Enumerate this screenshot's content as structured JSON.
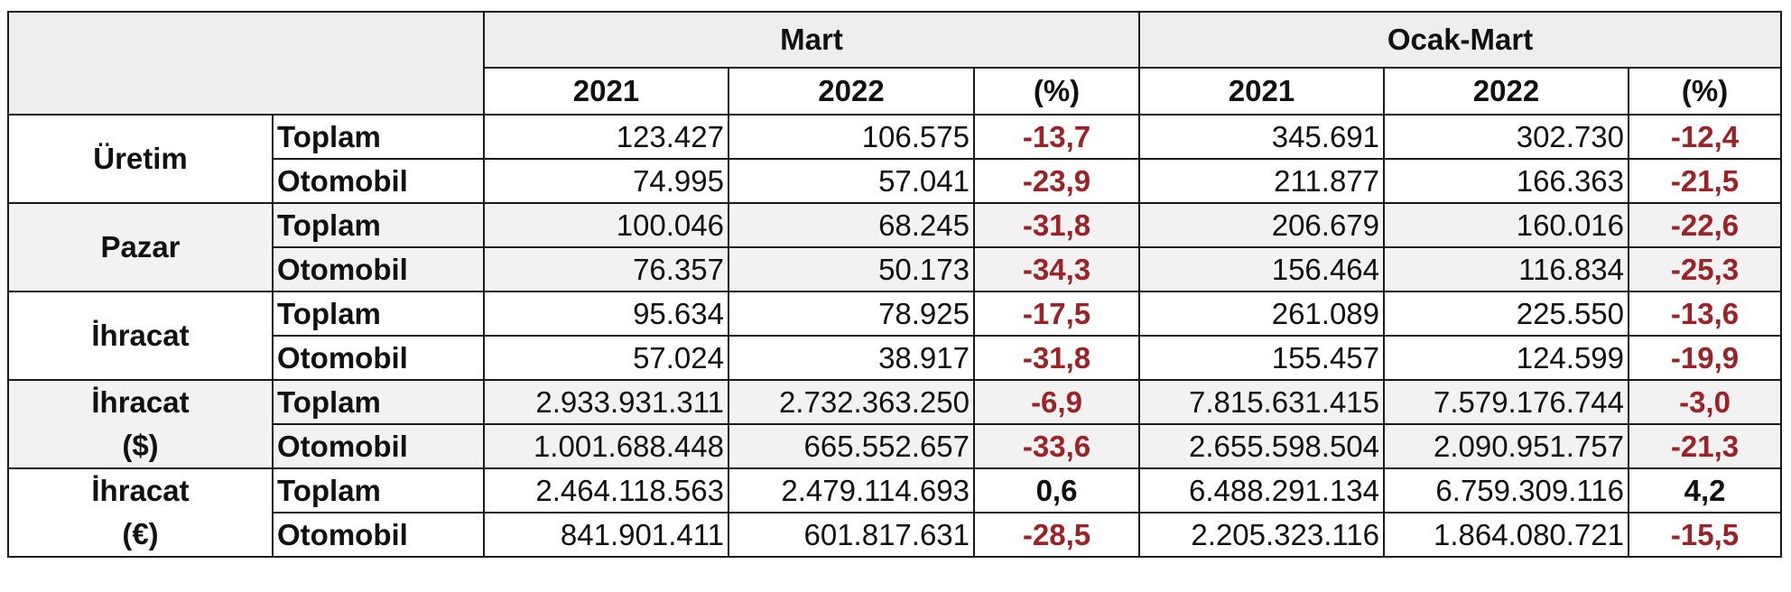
{
  "chart_data": {
    "type": "table",
    "header": {
      "periods": [
        "Mart",
        "Ocak-Mart"
      ],
      "subcolumns": [
        "2021",
        "2022",
        "(%)"
      ]
    },
    "groups": [
      {
        "label_lines": [
          "Üretim"
        ],
        "rows": [
          {
            "label": "Toplam",
            "values": [
              "123.427",
              "106.575",
              "-13,7",
              "345.691",
              "302.730",
              "-12,4"
            ]
          },
          {
            "label": "Otomobil",
            "values": [
              "74.995",
              "57.041",
              "-23,9",
              "211.877",
              "166.363",
              "-21,5"
            ]
          }
        ]
      },
      {
        "label_lines": [
          "Pazar"
        ],
        "rows": [
          {
            "label": "Toplam",
            "values": [
              "100.046",
              "68.245",
              "-31,8",
              "206.679",
              "160.016",
              "-22,6"
            ]
          },
          {
            "label": "Otomobil",
            "values": [
              "76.357",
              "50.173",
              "-34,3",
              "156.464",
              "116.834",
              "-25,3"
            ]
          }
        ]
      },
      {
        "label_lines": [
          "İhracat"
        ],
        "rows": [
          {
            "label": "Toplam",
            "values": [
              "95.634",
              "78.925",
              "-17,5",
              "261.089",
              "225.550",
              "-13,6"
            ]
          },
          {
            "label": "Otomobil",
            "values": [
              "57.024",
              "38.917",
              "-31,8",
              "155.457",
              "124.599",
              "-19,9"
            ]
          }
        ]
      },
      {
        "label_lines": [
          "İhracat",
          "($)"
        ],
        "rows": [
          {
            "label": "Toplam",
            "values": [
              "2.933.931.311",
              "2.732.363.250",
              "-6,9",
              "7.815.631.415",
              "7.579.176.744",
              "-3,0"
            ]
          },
          {
            "label": "Otomobil",
            "values": [
              "1.001.688.448",
              "665.552.657",
              "-33,6",
              "2.655.598.504",
              "2.090.951.757",
              "-21,3"
            ]
          }
        ]
      },
      {
        "label_lines": [
          "İhracat",
          "(€)"
        ],
        "rows": [
          {
            "label": "Toplam",
            "values": [
              "2.464.118.563",
              "2.479.114.693",
              "0,6",
              "6.488.291.134",
              "6.759.309.116",
              "4,2"
            ]
          },
          {
            "label": "Otomobil",
            "values": [
              "841.901.411",
              "601.817.631",
              "-28,5",
              "2.205.323.116",
              "1.864.080.721",
              "-15,5"
            ]
          }
        ]
      }
    ],
    "colors": {
      "negative_pct": "#9b2226",
      "positive_pct": "#111111",
      "header_bg": "#eeeeee",
      "shaded_row_bg": "#f2f2f2",
      "border": "#1a1a1a"
    }
  }
}
